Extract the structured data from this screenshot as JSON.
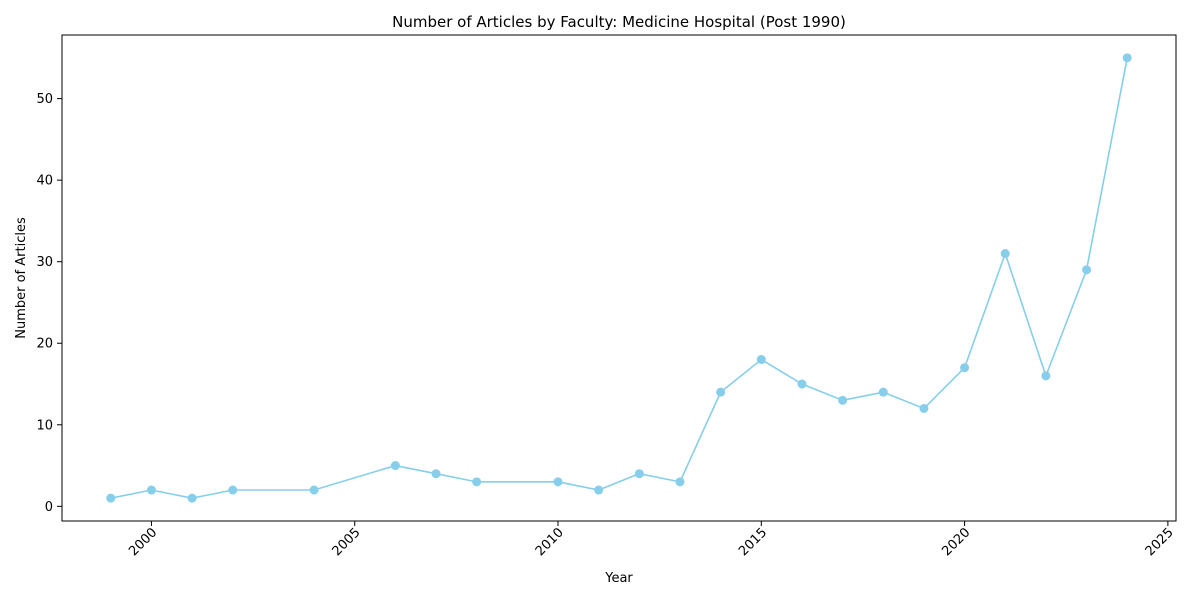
{
  "chart_data": {
    "type": "line",
    "title": "Number of Articles by Faculty: Medicine Hospital (Post 1990)",
    "xlabel": "Year",
    "ylabel": "Number of Articles",
    "xlim": [
      1997.8,
      2025.2
    ],
    "ylim": [
      -1.8,
      57.8
    ],
    "xticks": [
      2000,
      2005,
      2010,
      2015,
      2020,
      2025
    ],
    "yticks": [
      0,
      10,
      20,
      30,
      40,
      50
    ],
    "xtick_rotation": 45,
    "grid": false,
    "legend": "none",
    "color": "#87ceeb",
    "marker": "circle",
    "x": [
      1999,
      2000,
      2001,
      2002,
      2004,
      2006,
      2007,
      2008,
      2010,
      2011,
      2012,
      2013,
      2014,
      2015,
      2016,
      2017,
      2018,
      2019,
      2020,
      2021,
      2022,
      2023,
      2024
    ],
    "y": [
      1,
      2,
      1,
      2,
      2,
      5,
      4,
      3,
      3,
      2,
      4,
      3,
      14,
      18,
      15,
      13,
      14,
      12,
      17,
      31,
      16,
      29,
      55
    ]
  }
}
